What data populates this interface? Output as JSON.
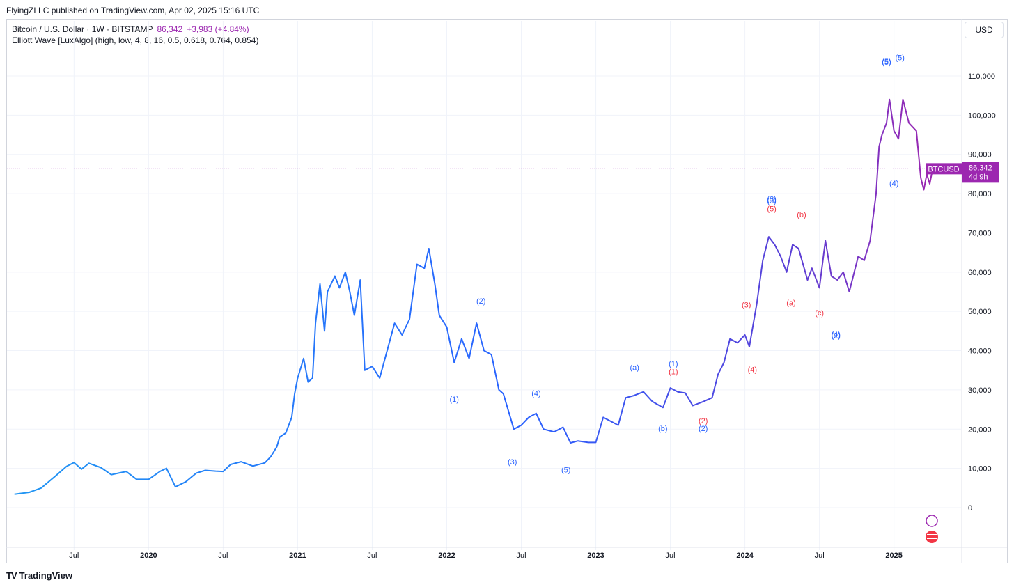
{
  "header": {
    "publish_line": "FlyingZLLC published on TradingView.com, Apr 02, 2025 15:16 UTC"
  },
  "legend": {
    "symbol_line": "Bitcoin / U.S. Dollar · 1W · BITSTAMP",
    "price": "86,342",
    "change": "+3,983 (+4.84%)",
    "indicator_line": "Elliott Wave [LuxAlgo] (high, low, 4, 8, 16, 0.5, 0.618, 0.764, 0.854)"
  },
  "currency_button": "USD",
  "price_tag": {
    "symbol": "BTCUSD",
    "price": "86,342",
    "countdown": "4d 9h"
  },
  "footer": {
    "brand": "TradingView",
    "logo": "TV"
  },
  "colors": {
    "line": "#2962ff",
    "line_recent": "#9c27b0",
    "wave_blue": "#2962ff",
    "wave_red": "#f23645",
    "grid": "#f0f3fa"
  },
  "icons": [
    "lightning-icon",
    "us-flag-icon"
  ],
  "chart_data": {
    "type": "line",
    "title": "",
    "xlabel": "",
    "ylabel": "",
    "ylim": [
      -7000,
      121000
    ],
    "y_ticks": [
      0,
      10000,
      20000,
      30000,
      40000,
      50000,
      60000,
      70000,
      80000,
      90000,
      100000,
      110000
    ],
    "y_tick_labels": [
      "0",
      "10,000",
      "20,000",
      "30,000",
      "40,000",
      "50,000",
      "60,000",
      "70,000",
      "80,000",
      "90,000",
      "100,000",
      "110,000"
    ],
    "x_ticks": [
      {
        "label": "Jul",
        "t": 2019.5,
        "major": false
      },
      {
        "label": "2020",
        "t": 2020.0,
        "major": true
      },
      {
        "label": "Jul",
        "t": 2020.5,
        "major": false
      },
      {
        "label": "2021",
        "t": 2021.0,
        "major": true
      },
      {
        "label": "Jul",
        "t": 2021.5,
        "major": false
      },
      {
        "label": "2022",
        "t": 2022.0,
        "major": true
      },
      {
        "label": "Jul",
        "t": 2022.5,
        "major": false
      },
      {
        "label": "2023",
        "t": 2023.0,
        "major": true
      },
      {
        "label": "Jul",
        "t": 2023.5,
        "major": false
      },
      {
        "label": "2024",
        "t": 2024.0,
        "major": true
      },
      {
        "label": "Jul",
        "t": 2024.5,
        "major": false
      },
      {
        "label": "2025",
        "t": 2025.0,
        "major": true
      }
    ],
    "current_price": 86342,
    "series": [
      {
        "values": [
          [
            2019.1,
            3400
          ],
          [
            2019.2,
            3900
          ],
          [
            2019.28,
            5000
          ],
          [
            2019.38,
            8200
          ],
          [
            2019.45,
            10500
          ],
          [
            2019.5,
            11500
          ],
          [
            2019.55,
            9800
          ],
          [
            2019.6,
            11300
          ],
          [
            2019.68,
            10200
          ],
          [
            2019.75,
            8400
          ],
          [
            2019.8,
            8800
          ],
          [
            2019.85,
            9200
          ],
          [
            2019.92,
            7200
          ],
          [
            2020.0,
            7200
          ],
          [
            2020.08,
            9300
          ],
          [
            2020.12,
            10000
          ],
          [
            2020.18,
            5300
          ],
          [
            2020.25,
            6600
          ],
          [
            2020.32,
            8800
          ],
          [
            2020.38,
            9500
          ],
          [
            2020.45,
            9300
          ],
          [
            2020.5,
            9200
          ],
          [
            2020.55,
            11000
          ],
          [
            2020.62,
            11700
          ],
          [
            2020.7,
            10600
          ],
          [
            2020.78,
            11400
          ],
          [
            2020.82,
            13000
          ],
          [
            2020.86,
            15500
          ],
          [
            2020.88,
            18000
          ],
          [
            2020.92,
            19000
          ],
          [
            2020.96,
            23000
          ],
          [
            2020.98,
            29000
          ],
          [
            2021.0,
            33000
          ],
          [
            2021.04,
            38000
          ],
          [
            2021.07,
            32000
          ],
          [
            2021.1,
            33000
          ],
          [
            2021.12,
            47000
          ],
          [
            2021.15,
            57000
          ],
          [
            2021.18,
            45000
          ],
          [
            2021.2,
            55000
          ],
          [
            2021.25,
            59000
          ],
          [
            2021.28,
            56000
          ],
          [
            2021.32,
            60000
          ],
          [
            2021.35,
            55000
          ],
          [
            2021.38,
            49000
          ],
          [
            2021.42,
            58000
          ],
          [
            2021.45,
            35000
          ],
          [
            2021.5,
            36000
          ],
          [
            2021.55,
            33000
          ],
          [
            2021.6,
            40000
          ],
          [
            2021.65,
            47000
          ],
          [
            2021.7,
            44000
          ],
          [
            2021.75,
            48000
          ],
          [
            2021.8,
            62000
          ],
          [
            2021.85,
            61000
          ],
          [
            2021.88,
            66000
          ],
          [
            2021.92,
            57000
          ],
          [
            2021.95,
            49000
          ],
          [
            2022.0,
            46000
          ],
          [
            2022.05,
            37000
          ],
          [
            2022.1,
            43000
          ],
          [
            2022.15,
            38000
          ],
          [
            2022.2,
            47000
          ],
          [
            2022.25,
            40000
          ],
          [
            2022.3,
            39000
          ],
          [
            2022.35,
            30000
          ],
          [
            2022.38,
            29000
          ],
          [
            2022.45,
            20000
          ],
          [
            2022.5,
            21000
          ],
          [
            2022.55,
            23000
          ],
          [
            2022.6,
            24000
          ],
          [
            2022.65,
            20000
          ],
          [
            2022.72,
            19300
          ],
          [
            2022.78,
            20500
          ],
          [
            2022.83,
            16500
          ],
          [
            2022.88,
            17000
          ],
          [
            2022.95,
            16600
          ],
          [
            2023.0,
            16600
          ],
          [
            2023.05,
            23000
          ],
          [
            2023.1,
            22000
          ],
          [
            2023.15,
            21000
          ],
          [
            2023.2,
            28000
          ],
          [
            2023.25,
            28500
          ],
          [
            2023.32,
            29500
          ],
          [
            2023.38,
            27000
          ],
          [
            2023.45,
            25500
          ],
          [
            2023.5,
            30500
          ],
          [
            2023.55,
            29500
          ],
          [
            2023.6,
            29200
          ],
          [
            2023.65,
            26000
          ],
          [
            2023.72,
            27000
          ],
          [
            2023.78,
            28000
          ],
          [
            2023.82,
            34000
          ],
          [
            2023.86,
            37000
          ],
          [
            2023.9,
            43000
          ],
          [
            2023.95,
            42000
          ],
          [
            2024.0,
            44000
          ],
          [
            2024.03,
            41000
          ],
          [
            2024.08,
            52000
          ],
          [
            2024.12,
            63000
          ],
          [
            2024.16,
            69000
          ],
          [
            2024.2,
            67000
          ],
          [
            2024.24,
            64000
          ],
          [
            2024.28,
            60000
          ],
          [
            2024.32,
            67000
          ],
          [
            2024.36,
            66000
          ],
          [
            2024.42,
            58000
          ],
          [
            2024.45,
            61000
          ],
          [
            2024.5,
            56000
          ],
          [
            2024.54,
            68000
          ],
          [
            2024.58,
            59000
          ],
          [
            2024.62,
            58000
          ],
          [
            2024.66,
            60000
          ],
          [
            2024.7,
            55000
          ],
          [
            2024.76,
            64000
          ],
          [
            2024.8,
            63000
          ],
          [
            2024.84,
            68000
          ],
          [
            2024.88,
            80000
          ],
          [
            2024.9,
            92000
          ],
          [
            2024.92,
            95000
          ],
          [
            2024.95,
            98000
          ],
          [
            2024.97,
            104000
          ],
          [
            2025.0,
            96000
          ],
          [
            2025.03,
            94000
          ],
          [
            2025.06,
            104000
          ],
          [
            2025.1,
            98000
          ],
          [
            2025.15,
            96000
          ],
          [
            2025.18,
            84000
          ],
          [
            2025.2,
            81000
          ],
          [
            2025.22,
            85000
          ],
          [
            2025.24,
            82500
          ],
          [
            2025.26,
            86342
          ]
        ]
      }
    ],
    "wave_labels": [
      {
        "text": "(1)",
        "t": 2022.05,
        "y": 27000,
        "color": "blue"
      },
      {
        "text": "(2)",
        "t": 2022.23,
        "y": 52000,
        "color": "blue"
      },
      {
        "text": "(3)",
        "t": 2022.44,
        "y": 11000,
        "color": "blue"
      },
      {
        "text": "(4)",
        "t": 2022.6,
        "y": 28500,
        "color": "blue"
      },
      {
        "text": "(5)",
        "t": 2022.8,
        "y": 9000,
        "color": "blue"
      },
      {
        "text": "(a)",
        "t": 2023.26,
        "y": 35000,
        "color": "blue"
      },
      {
        "text": "(b)",
        "t": 2023.45,
        "y": 19500,
        "color": "blue"
      },
      {
        "text": "(1)",
        "t": 2023.52,
        "y": 36000,
        "color": "blue"
      },
      {
        "text": "(1)",
        "t": 2023.52,
        "y": 34000,
        "color": "red"
      },
      {
        "text": "(2)",
        "t": 2023.72,
        "y": 21500,
        "color": "red"
      },
      {
        "text": "(2)",
        "t": 2023.72,
        "y": 19500,
        "color": "blue"
      },
      {
        "text": "(3)",
        "t": 2024.01,
        "y": 51000,
        "color": "red"
      },
      {
        "text": "(4)",
        "t": 2024.05,
        "y": 34500,
        "color": "red"
      },
      {
        "text": "(3)",
        "t": 2024.18,
        "y": 78000,
        "color": "blue"
      },
      {
        "text": "(3)",
        "t": 2024.18,
        "y": 77500,
        "color": "blue"
      },
      {
        "text": "(5)",
        "t": 2024.18,
        "y": 75500,
        "color": "red"
      },
      {
        "text": "(a)",
        "t": 2024.31,
        "y": 51500,
        "color": "red"
      },
      {
        "text": "(b)",
        "t": 2024.38,
        "y": 74000,
        "color": "red"
      },
      {
        "text": "(c)",
        "t": 2024.5,
        "y": 49000,
        "color": "red"
      },
      {
        "text": "(4)",
        "t": 2024.61,
        "y": 43500,
        "color": "blue"
      },
      {
        "text": "(2)",
        "t": 2024.61,
        "y": 43200,
        "color": "blue"
      },
      {
        "text": "(5)",
        "t": 2024.95,
        "y": 113000,
        "color": "blue"
      },
      {
        "text": "(5)",
        "t": 2024.95,
        "y": 112800,
        "color": "blue"
      },
      {
        "text": "(5)",
        "t": 2025.04,
        "y": 114000,
        "color": "blue"
      },
      {
        "text": "(4)",
        "t": 2025.0,
        "y": 82000,
        "color": "blue"
      }
    ]
  }
}
